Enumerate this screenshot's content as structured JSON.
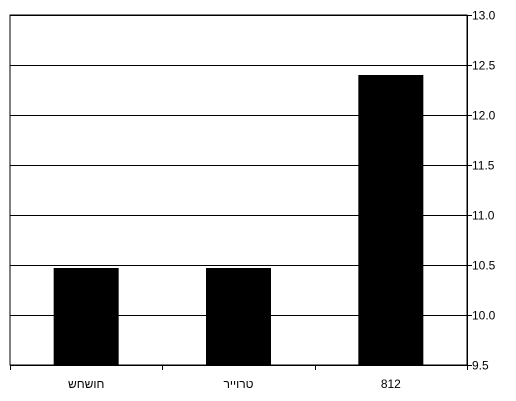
{
  "chart_data": {
    "type": "bar",
    "categories": [
      "חושחש",
      "טרוייר",
      "812"
    ],
    "values": [
      10.47,
      10.47,
      12.4
    ],
    "ylim": [
      9.5,
      13.0
    ],
    "yticks": [
      "9.5",
      "10.0",
      "10.5",
      "11.0",
      "11.5",
      "12.0",
      "12.5",
      "13.0"
    ],
    "y_axis_position": "right",
    "grid": true,
    "legend": "none",
    "bar_color": "#000000",
    "grid_color": "#000000",
    "background_color": "#ffffff"
  }
}
